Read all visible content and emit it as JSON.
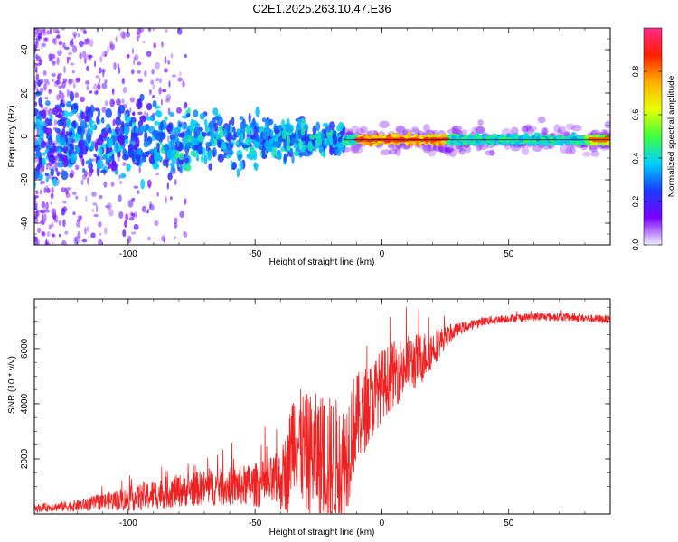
{
  "chart_data": [
    {
      "type": "heatmap",
      "title": "C2E1.2025.263.10.47.E36",
      "xlabel": "Height of straight line (km)",
      "ylabel": "Frequency (Hz)",
      "xlim": [
        -137,
        90
      ],
      "ylim": [
        -50,
        50
      ],
      "xticks": [
        -100,
        -50,
        0,
        50
      ],
      "yticks": [
        -40,
        -20,
        0,
        20,
        40
      ],
      "colorbar": {
        "label": "Normalized spectral amplitude",
        "range": [
          0,
          1
        ],
        "ticks": [
          "0.0",
          "0.2",
          "0.4",
          "0.6",
          "0.8"
        ],
        "tick_values": [
          0.0,
          0.2,
          0.4,
          0.6,
          0.8
        ],
        "colormap": [
          "#f0f0ff",
          "#7a00ff",
          "#1a3cff",
          "#00d0ff",
          "#40ff40",
          "#e8ff00",
          "#ffb000",
          "#ff2000",
          "#ff2a8a"
        ]
      },
      "band": {
        "center_hz": -1.5,
        "scattered_region_km": [
          -137,
          -15
        ],
        "coherent_region_km": [
          -15,
          90
        ],
        "peak_region_km": [
          -10,
          25
        ]
      }
    },
    {
      "type": "line",
      "title": "",
      "xlabel": "Height of straight line (km)",
      "ylabel": "SNR (10 * v/v)",
      "xlim": [
        -137,
        90
      ],
      "ylim": [
        0,
        7800
      ],
      "xticks": [
        -100,
        -50,
        0,
        50
      ],
      "yticks": [
        2000,
        4000,
        6000
      ],
      "line_color": "#ee2222",
      "series": [
        {
          "name": "SNR",
          "x": [
            -137,
            -130,
            -120,
            -110,
            -100,
            -90,
            -80,
            -70,
            -60,
            -50,
            -45,
            -40,
            -37,
            -35,
            -33,
            -30,
            -25,
            -20,
            -17,
            -15,
            -12,
            -10,
            -5,
            0,
            5,
            10,
            15,
            20,
            25,
            30,
            35,
            40,
            50,
            60,
            70,
            80,
            90
          ],
          "y": [
            200,
            250,
            300,
            450,
            550,
            700,
            850,
            950,
            1000,
            1050,
            1100,
            1200,
            1600,
            3000,
            2600,
            2200,
            2100,
            1900,
            1800,
            1700,
            3000,
            3400,
            4000,
            4700,
            5100,
            5400,
            5600,
            6000,
            6400,
            6700,
            6850,
            7000,
            7100,
            7150,
            7150,
            7100,
            7050
          ],
          "noise": [
            150,
            150,
            220,
            300,
            450,
            550,
            600,
            650,
            700,
            800,
            900,
            1100,
            1600,
            1900,
            2000,
            2200,
            2300,
            2400,
            2400,
            2400,
            2000,
            1700,
            1500,
            1300,
            1200,
            1100,
            1000,
            700,
            400,
            220,
            180,
            160,
            150,
            150,
            150,
            150,
            150
          ]
        }
      ]
    }
  ]
}
